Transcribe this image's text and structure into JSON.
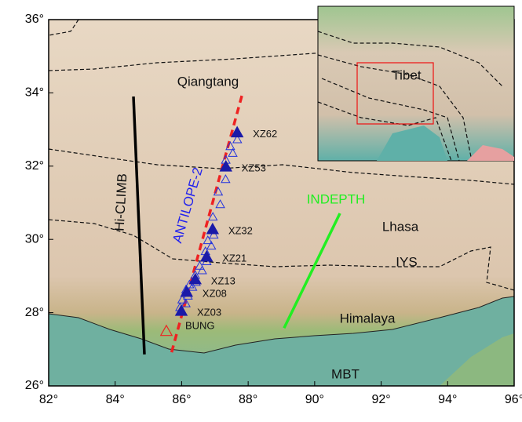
{
  "map": {
    "xlim": [
      82,
      96
    ],
    "ylim": [
      26,
      36
    ],
    "xticks": [
      {
        "value": 82,
        "label": "82°"
      },
      {
        "value": 84,
        "label": "84°"
      },
      {
        "value": 86,
        "label": "86°"
      },
      {
        "value": 88,
        "label": "88°"
      },
      {
        "value": 90,
        "label": "90°"
      },
      {
        "value": 92,
        "label": "92°"
      },
      {
        "value": 94,
        "label": "94°"
      },
      {
        "value": 96,
        "label": "96°"
      }
    ],
    "yticks": [
      {
        "value": 26,
        "label": "26°"
      },
      {
        "value": 28,
        "label": "28°"
      },
      {
        "value": 30,
        "label": "30°"
      },
      {
        "value": 32,
        "label": "32°"
      },
      {
        "value": 34,
        "label": "34°"
      },
      {
        "value": 36,
        "label": "36°"
      }
    ],
    "regions": [
      "Qiangtang",
      "Lhasa",
      "Himalaya",
      "IYS",
      "MBT"
    ],
    "inset_label": "Tibet",
    "profiles": [
      {
        "name": "Hi-CLIMB",
        "color": "#000000",
        "lon": [
          84.55,
          84.88
        ],
        "lat": [
          33.9,
          26.86
        ]
      },
      {
        "name": "INDEPTH",
        "color": "#22ee22",
        "lon": [
          90.76,
          89.08
        ],
        "lat": [
          30.71,
          27.58
        ]
      },
      {
        "name": "ANTILOPE-2",
        "color": "#ee2222",
        "lon": [
          87.81,
          85.68
        ],
        "lat": [
          33.92,
          26.86
        ]
      }
    ],
    "stations": [
      {
        "name": "XZ62",
        "lon": 87.67,
        "lat": 32.9
      },
      {
        "name": "XZ53",
        "lon": 87.33,
        "lat": 31.97
      },
      {
        "name": "XZ32",
        "lon": 86.93,
        "lat": 30.26
      },
      {
        "name": "XZ21",
        "lon": 86.75,
        "lat": 29.51
      },
      {
        "name": "XZ13",
        "lon": 86.41,
        "lat": 28.89
      },
      {
        "name": "XZ08",
        "lon": 86.15,
        "lat": 28.55
      },
      {
        "name": "XZ03",
        "lon": 85.99,
        "lat": 28.03
      },
      {
        "name": "BUNG",
        "lon": 85.54,
        "lat": 27.48
      }
    ]
  }
}
